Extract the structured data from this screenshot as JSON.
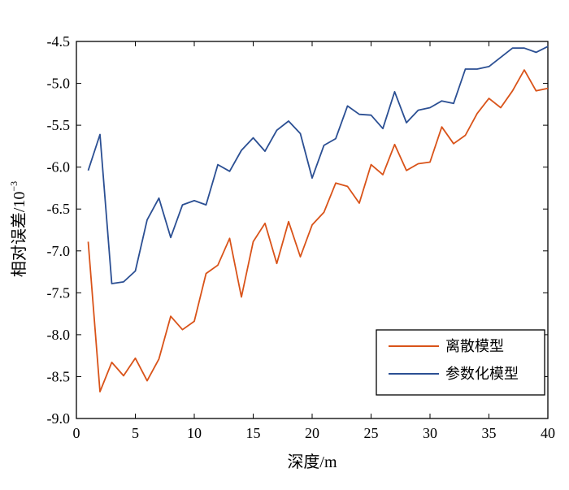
{
  "chart_data": {
    "type": "line",
    "xlabel": "深度/m",
    "ylabel": "相对误差/10",
    "ylabel_exponent": "−3",
    "xlim": [
      0,
      40
    ],
    "ylim": [
      -9.0,
      -4.5
    ],
    "x_ticks": [
      0,
      5,
      10,
      15,
      20,
      25,
      30,
      35,
      40
    ],
    "x_tick_labels": [
      "0",
      "5",
      "10",
      "15",
      "20",
      "25",
      "30",
      "35",
      "40"
    ],
    "y_ticks": [
      -4.5,
      -5.0,
      -5.5,
      -6.0,
      -6.5,
      -7.0,
      -7.5,
      -8.0,
      -8.5,
      -9.0
    ],
    "y_tick_labels": [
      "-4.5",
      "-5.0",
      "-5.5",
      "-6.0",
      "-6.5",
      "-7.0",
      "-7.5",
      "-8.0",
      "-8.5",
      "-9.0"
    ],
    "grid": false,
    "legend_position": "lower-right",
    "x": [
      1,
      2,
      3,
      4,
      5,
      6,
      7,
      8,
      9,
      10,
      11,
      12,
      13,
      14,
      15,
      16,
      17,
      18,
      19,
      20,
      21,
      22,
      23,
      24,
      25,
      26,
      27,
      28,
      29,
      30,
      31,
      32,
      33,
      34,
      35,
      36,
      37,
      38,
      39,
      40
    ],
    "series": [
      {
        "name": "离散模型",
        "color": "#d95319",
        "values": [
          -6.89,
          -8.68,
          -8.33,
          -8.49,
          -8.28,
          -8.55,
          -8.29,
          -7.78,
          -7.94,
          -7.84,
          -7.27,
          -7.17,
          -6.85,
          -7.55,
          -6.89,
          -6.67,
          -7.15,
          -6.65,
          -7.07,
          -6.69,
          -6.54,
          -6.19,
          -6.23,
          -6.43,
          -5.97,
          -6.09,
          -5.73,
          -6.04,
          -5.96,
          -5.94,
          -5.52,
          -5.72,
          -5.62,
          -5.36,
          -5.18,
          -5.29,
          -5.09,
          -4.84,
          -5.09,
          -5.06
        ]
      },
      {
        "name": "参数化模型",
        "color": "#2b4f93",
        "values": [
          -6.04,
          -5.61,
          -7.39,
          -7.37,
          -7.24,
          -6.63,
          -6.37,
          -6.84,
          -6.45,
          -6.4,
          -6.45,
          -5.97,
          -6.05,
          -5.8,
          -5.65,
          -5.81,
          -5.56,
          -5.45,
          -5.6,
          -6.13,
          -5.74,
          -5.66,
          -5.27,
          -5.37,
          -5.38,
          -5.54,
          -5.1,
          -5.47,
          -5.32,
          -5.29,
          -5.21,
          -5.24,
          -4.83,
          -4.83,
          -4.8,
          -4.69,
          -4.58,
          -4.58,
          -4.63,
          -4.56
        ]
      }
    ]
  }
}
